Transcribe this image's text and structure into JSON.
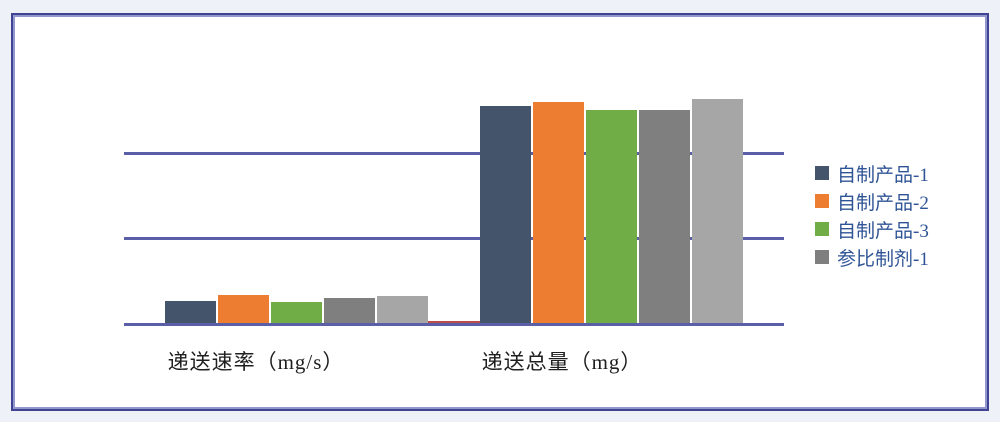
{
  "background_color": "#EEF1F8",
  "panel": {
    "border_color": "#3E4392",
    "border_highlight_color": "#9297CE",
    "fill_color": "#FFFFFF"
  },
  "chart_data": {
    "type": "bar",
    "categories": [
      "递送速率（mg/s）",
      "递送总量（mg）"
    ],
    "series": [
      {
        "name": "自制产品-1",
        "color": "#44546A",
        "values": [
          0.26,
          2.55
        ]
      },
      {
        "name": "自制产品-2",
        "color": "#ED7D31",
        "values": [
          0.33,
          2.6
        ]
      },
      {
        "name": "自制产品-3",
        "color": "#70AD47",
        "values": [
          0.25,
          2.5
        ]
      },
      {
        "name": "参比制剂-1",
        "color": "#7F7F7F",
        "values": [
          0.29,
          2.5
        ]
      },
      {
        "name": "",
        "color": "#A6A6A6",
        "values": [
          0.32,
          2.63
        ]
      }
    ],
    "legend_visible": [
      "自制产品-1",
      "自制产品-2",
      "自制产品-3",
      "参比制剂-1"
    ],
    "legend_position": "right",
    "legend_text_color": "#2F5496",
    "axis_label_color": "#1F1F1F",
    "gridline_values": [
      1,
      2
    ],
    "gridline_color": "#5A5FA8",
    "axis_line_color": "#5A5FA8",
    "ylim": [
      0,
      3.05
    ],
    "grid_on": true,
    "zero_marker_color": "#BE4B48"
  }
}
